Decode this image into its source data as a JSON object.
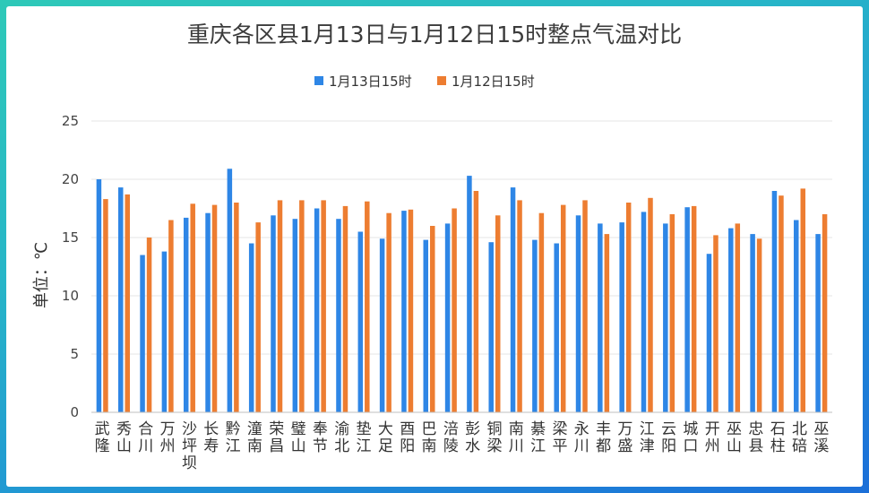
{
  "colors": {
    "series1": "#2e86e6",
    "series2": "#ed7d31",
    "grid": "#e6e6e6",
    "axis": "#bfbfbf"
  },
  "chart_data": {
    "type": "bar",
    "title": "重庆各区县1月13日与1月12日15时整点气温对比",
    "ylabel": "单位：℃",
    "xlabel": "",
    "ylim": [
      0,
      25
    ],
    "yticks": [
      "0",
      "5",
      "10",
      "15",
      "20",
      "25"
    ],
    "grid": true,
    "legend": "top",
    "categories": [
      "武隆",
      "秀山",
      "合川",
      "万州",
      "沙坪坝",
      "长寿",
      "黔江",
      "潼南",
      "荣昌",
      "璧山",
      "奉节",
      "渝北",
      "垫江",
      "大足",
      "酉阳",
      "巴南",
      "涪陵",
      "彭水",
      "铜梁",
      "南川",
      "綦江",
      "梁平",
      "永川",
      "丰都",
      "万盛",
      "江津",
      "云阳",
      "城口",
      "开州",
      "巫山",
      "忠县",
      "石柱",
      "北碚",
      "巫溪"
    ],
    "series": [
      {
        "name": "1月13日15时",
        "values": [
          20.0,
          19.3,
          13.5,
          13.8,
          16.7,
          17.1,
          20.9,
          14.5,
          16.9,
          16.6,
          17.5,
          16.6,
          15.5,
          14.9,
          17.3,
          14.8,
          16.2,
          20.3,
          14.6,
          19.3,
          14.8,
          14.5,
          16.9,
          16.2,
          16.3,
          17.2,
          16.2,
          17.6,
          13.6,
          15.8,
          15.3,
          19.0,
          16.5,
          15.3
        ]
      },
      {
        "name": "1月12日15时",
        "values": [
          18.3,
          18.7,
          15.0,
          16.5,
          17.9,
          17.8,
          18.0,
          16.3,
          18.2,
          18.2,
          18.2,
          17.7,
          18.1,
          17.1,
          17.4,
          16.0,
          17.5,
          19.0,
          16.9,
          18.2,
          17.1,
          17.8,
          18.2,
          15.3,
          18.0,
          18.4,
          17.0,
          17.7,
          15.2,
          16.2,
          14.9,
          18.6,
          19.2,
          17.0
        ]
      }
    ]
  }
}
